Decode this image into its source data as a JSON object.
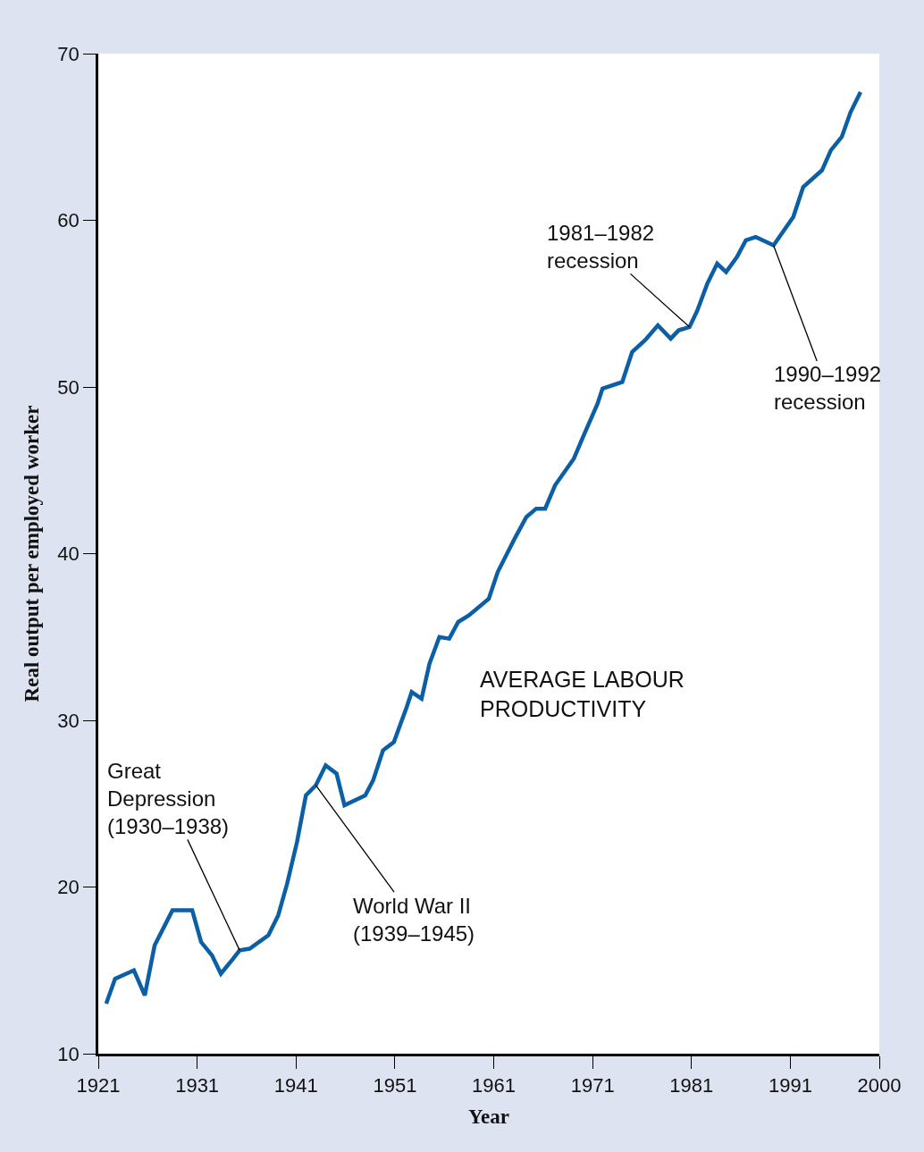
{
  "chart_data": {
    "type": "line",
    "xlabel": "Year",
    "ylabel": "Real output per employed worker",
    "x": [
      1921.8,
      1922.7,
      1924.6,
      1925.7,
      1926.7,
      1928.5,
      1930.5,
      1931.4,
      1932.5,
      1933.4,
      1934.5,
      1935.3,
      1936.3,
      1938.2,
      1939.2,
      1940.1,
      1941.1,
      1942.0,
      1943.0,
      1944.0,
      1945.1,
      1945.9,
      1948.0,
      1948.8,
      1949.8,
      1950.9,
      1952.2,
      1952.7,
      1953.7,
      1954.5,
      1955.5,
      1956.5,
      1957.4,
      1958.5,
      1960.5,
      1961.4,
      1963.2,
      1964.3,
      1965.3,
      1966.2,
      1967.2,
      1969.1,
      1970.1,
      1971.5,
      1972.0,
      1974.0,
      1975.0,
      1976.3,
      1977.6,
      1978.9,
      1979.7,
      1980.8,
      1981.6,
      1982.6,
      1983.6,
      1984.5,
      1985.6,
      1986.5,
      1987.5,
      1989.3,
      1991.3,
      1992.3,
      1994.2,
      1995.1,
      1996.2,
      1997.1,
      1998.1
    ],
    "values": [
      13.0,
      14.5,
      15.0,
      13.5,
      16.5,
      18.6,
      18.6,
      16.7,
      15.9,
      14.8,
      15.6,
      16.2,
      16.3,
      17.1,
      18.3,
      20.2,
      22.7,
      25.5,
      26.1,
      27.3,
      26.8,
      24.9,
      25.5,
      26.4,
      28.2,
      28.7,
      30.8,
      31.7,
      31.3,
      33.4,
      35.0,
      34.9,
      35.9,
      36.3,
      37.3,
      38.9,
      41.0,
      42.2,
      42.7,
      42.7,
      44.1,
      45.7,
      47.1,
      49.0,
      49.9,
      50.3,
      52.1,
      52.8,
      53.7,
      52.9,
      53.4,
      53.6,
      54.6,
      56.2,
      57.4,
      56.9,
      57.8,
      58.8,
      59.0,
      58.5,
      60.2,
      62.0,
      63.0,
      64.2,
      65.0,
      66.5,
      67.7
    ],
    "color": "#0a5fa5",
    "xlim": [
      1921,
      2000
    ],
    "xticks": [
      1921,
      1931,
      1941,
      1951,
      1961,
      1971,
      1981,
      1991,
      2000
    ],
    "ylim": [
      10,
      70
    ],
    "yticks": [
      10,
      20,
      30,
      40,
      50,
      60,
      70
    ],
    "annotations": [
      {
        "text": "Great\nDepression\n(1930–1938)",
        "x": 1935.3,
        "y": 16.2
      },
      {
        "text": "World War II\n(1939–1945)",
        "x": 1943.0,
        "y": 26.1
      },
      {
        "text": "1981–1982\nrecession",
        "x": 1980.8,
        "y": 53.6
      },
      {
        "text": "1990–1992\nrecession",
        "x": 1989.3,
        "y": 58.5
      },
      "AVERAGE LABOUR\nPRODUCTIVITY"
    ]
  }
}
